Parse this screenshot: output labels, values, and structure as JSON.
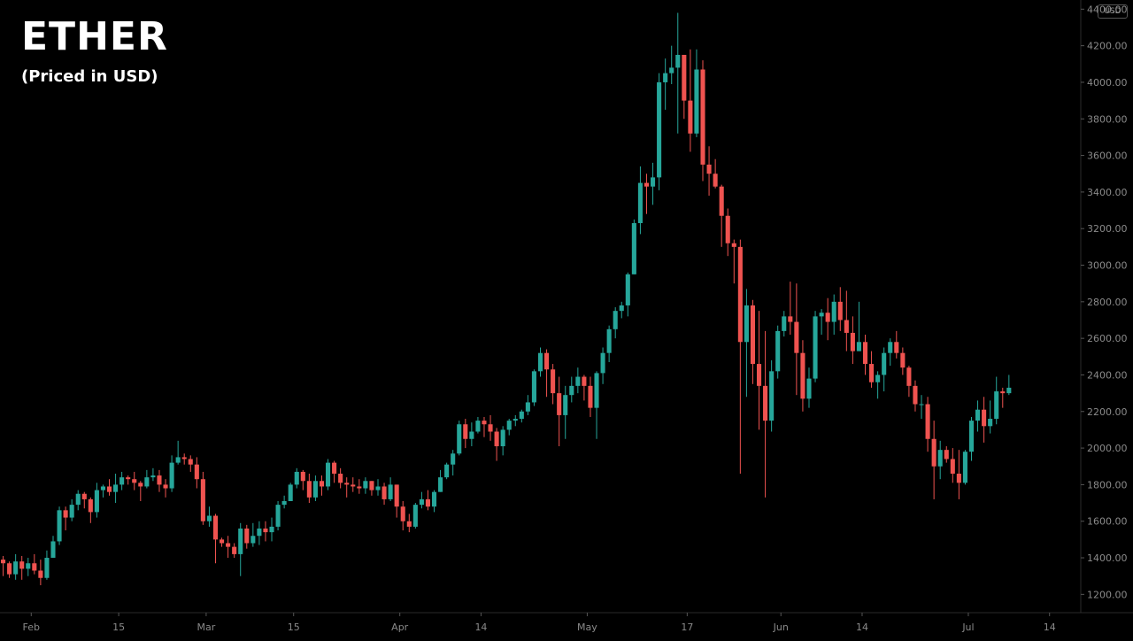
{
  "chart_data": {
    "type": "candlestick",
    "title": "ETHER",
    "subtitle": "(Priced in USD)",
    "currency": "USD",
    "ylim": [
      1100,
      4450
    ],
    "y_ticks": [
      1200,
      1400,
      1600,
      1800,
      2000,
      2200,
      2400,
      2600,
      2800,
      3000,
      3200,
      3400,
      3600,
      3800,
      4000,
      4200,
      4400
    ],
    "y_tick_labels": [
      "1200.00",
      "1400.00",
      "1600.00",
      "1800.00",
      "2000.00",
      "2200.00",
      "2400.00",
      "2600.00",
      "2800.00",
      "3000.00",
      "3200.00",
      "3400.00",
      "3600.00",
      "3800.00",
      "4000.00",
      "4200.00",
      "4400.00"
    ],
    "x_ticks": [
      {
        "label": "Feb",
        "date": "2021-02-01"
      },
      {
        "label": "15",
        "date": "2021-02-15"
      },
      {
        "label": "Mar",
        "date": "2021-03-01"
      },
      {
        "label": "15",
        "date": "2021-03-15"
      },
      {
        "label": "Apr",
        "date": "2021-04-01"
      },
      {
        "label": "14",
        "date": "2021-04-14"
      },
      {
        "label": "May",
        "date": "2021-05-01"
      },
      {
        "label": "17",
        "date": "2021-05-17"
      },
      {
        "label": "Jun",
        "date": "2021-06-01"
      },
      {
        "label": "14",
        "date": "2021-06-14"
      },
      {
        "label": "Jul",
        "date": "2021-07-01"
      },
      {
        "label": "14",
        "date": "2021-07-14"
      }
    ],
    "x_range": [
      "2021-01-27",
      "2021-07-19"
    ],
    "up_color": "#26a69a",
    "down_color": "#ef5350",
    "start_date": "2021-01-27",
    "closes": [
      1370,
      1310,
      1380,
      1340,
      1370,
      1330,
      1290,
      1400,
      1490,
      1660,
      1620,
      1690,
      1750,
      1720,
      1650,
      1770,
      1790,
      1760,
      1800,
      1840,
      1830,
      1810,
      1790,
      1840,
      1850,
      1800,
      1780,
      1920,
      1950,
      1940,
      1910,
      1830,
      1600,
      1630,
      1500,
      1480,
      1460,
      1420,
      1560,
      1480,
      1520,
      1560,
      1540,
      1570,
      1690,
      1710,
      1800,
      1870,
      1820,
      1730,
      1820,
      1790,
      1920,
      1860,
      1810,
      1800,
      1790,
      1780,
      1820,
      1770,
      1790,
      1720,
      1800,
      1680,
      1600,
      1570,
      1690,
      1720,
      1680,
      1760,
      1840,
      1910,
      1970,
      2130,
      2050,
      2090,
      2150,
      2130,
      2090,
      2010,
      2100,
      2150,
      2160,
      2200,
      2250,
      2420,
      2520,
      2430,
      2300,
      2180,
      2290,
      2340,
      2390,
      2340,
      2220,
      2410,
      2520,
      2650,
      2750,
      2780,
      2950,
      3230,
      3450,
      3430,
      3480,
      4000,
      4050,
      4080,
      4150,
      3900,
      3720,
      4070,
      3550,
      3500,
      3430,
      3270,
      3120,
      3100,
      2580,
      2780,
      2460,
      2340,
      2150,
      2420,
      2640,
      2720,
      2690,
      2520,
      2270,
      2380,
      2720,
      2740,
      2690,
      2800,
      2700,
      2630,
      2530,
      2580,
      2460,
      2360,
      2400,
      2520,
      2580,
      2520,
      2440,
      2340,
      2240,
      2240,
      2050,
      1900,
      1990,
      1940,
      1860,
      1810,
      1980,
      2150,
      2210,
      2120,
      2160,
      2310,
      2300,
      2330
    ],
    "highs": [
      1410,
      1380,
      1420,
      1410,
      1400,
      1420,
      1390,
      1440,
      1520,
      1680,
      1680,
      1720,
      1770,
      1760,
      1730,
      1810,
      1800,
      1830,
      1860,
      1870,
      1850,
      1870,
      1820,
      1880,
      1890,
      1880,
      1830,
      1960,
      2040,
      1970,
      1960,
      1950,
      1870,
      1680,
      1640,
      1510,
      1520,
      1480,
      1590,
      1580,
      1590,
      1600,
      1600,
      1620,
      1710,
      1740,
      1810,
      1890,
      1880,
      1860,
      1850,
      1850,
      1940,
      1930,
      1890,
      1840,
      1840,
      1830,
      1840,
      1820,
      1830,
      1810,
      1840,
      1800,
      1710,
      1640,
      1700,
      1760,
      1770,
      1770,
      1880,
      1920,
      1990,
      2150,
      2160,
      2140,
      2170,
      2170,
      2180,
      2110,
      2120,
      2160,
      2180,
      2210,
      2290,
      2430,
      2550,
      2540,
      2460,
      2390,
      2340,
      2390,
      2440,
      2400,
      2390,
      2420,
      2550,
      2670,
      2770,
      2800,
      2960,
      3250,
      3540,
      3500,
      3560,
      4050,
      4130,
      4200,
      4380,
      4120,
      4180,
      4180,
      4120,
      3650,
      3580,
      3440,
      3310,
      3140,
      3140,
      2870,
      2810,
      2750,
      2640,
      2480,
      2670,
      2750,
      2910,
      2900,
      2590,
      2440,
      2750,
      2760,
      2820,
      2840,
      2880,
      2860,
      2720,
      2800,
      2620,
      2530,
      2420,
      2550,
      2600,
      2640,
      2550,
      2450,
      2370,
      2290,
      2280,
      2150,
      2040,
      2010,
      2000,
      1990,
      1990,
      2170,
      2260,
      2280,
      2260,
      2390,
      2330,
      2400
    ],
    "lows": [
      1300,
      1290,
      1280,
      1280,
      1300,
      1310,
      1250,
      1280,
      1400,
      1470,
      1550,
      1600,
      1660,
      1670,
      1590,
      1620,
      1730,
      1740,
      1700,
      1770,
      1800,
      1770,
      1710,
      1780,
      1820,
      1760,
      1730,
      1760,
      1910,
      1910,
      1870,
      1780,
      1580,
      1570,
      1370,
      1460,
      1400,
      1400,
      1300,
      1450,
      1460,
      1470,
      1490,
      1490,
      1550,
      1670,
      1710,
      1780,
      1770,
      1700,
      1710,
      1740,
      1770,
      1810,
      1780,
      1730,
      1760,
      1750,
      1750,
      1740,
      1740,
      1690,
      1710,
      1620,
      1550,
      1540,
      1560,
      1670,
      1660,
      1650,
      1760,
      1830,
      1850,
      1960,
      2000,
      2010,
      2080,
      2060,
      2040,
      1930,
      1960,
      2070,
      2120,
      2140,
      2180,
      2230,
      2390,
      2280,
      2240,
      2010,
      2050,
      2250,
      2300,
      2260,
      2170,
      2050,
      2350,
      2470,
      2600,
      2710,
      2720,
      2980,
      3170,
      3280,
      3330,
      3410,
      3850,
      3990,
      3720,
      3800,
      3620,
      3700,
      3460,
      3380,
      3420,
      3100,
      3050,
      2900,
      1860,
      2280,
      2350,
      2100,
      1730,
      2090,
      2380,
      2610,
      2620,
      2290,
      2200,
      2220,
      2360,
      2620,
      2590,
      2620,
      2640,
      2530,
      2460,
      2550,
      2400,
      2330,
      2270,
      2310,
      2450,
      2490,
      2400,
      2280,
      2200,
      2160,
      1980,
      1720,
      1830,
      1920,
      1810,
      1720,
      1800,
      1930,
      2090,
      2030,
      2080,
      2130,
      2220,
      2290
    ]
  }
}
